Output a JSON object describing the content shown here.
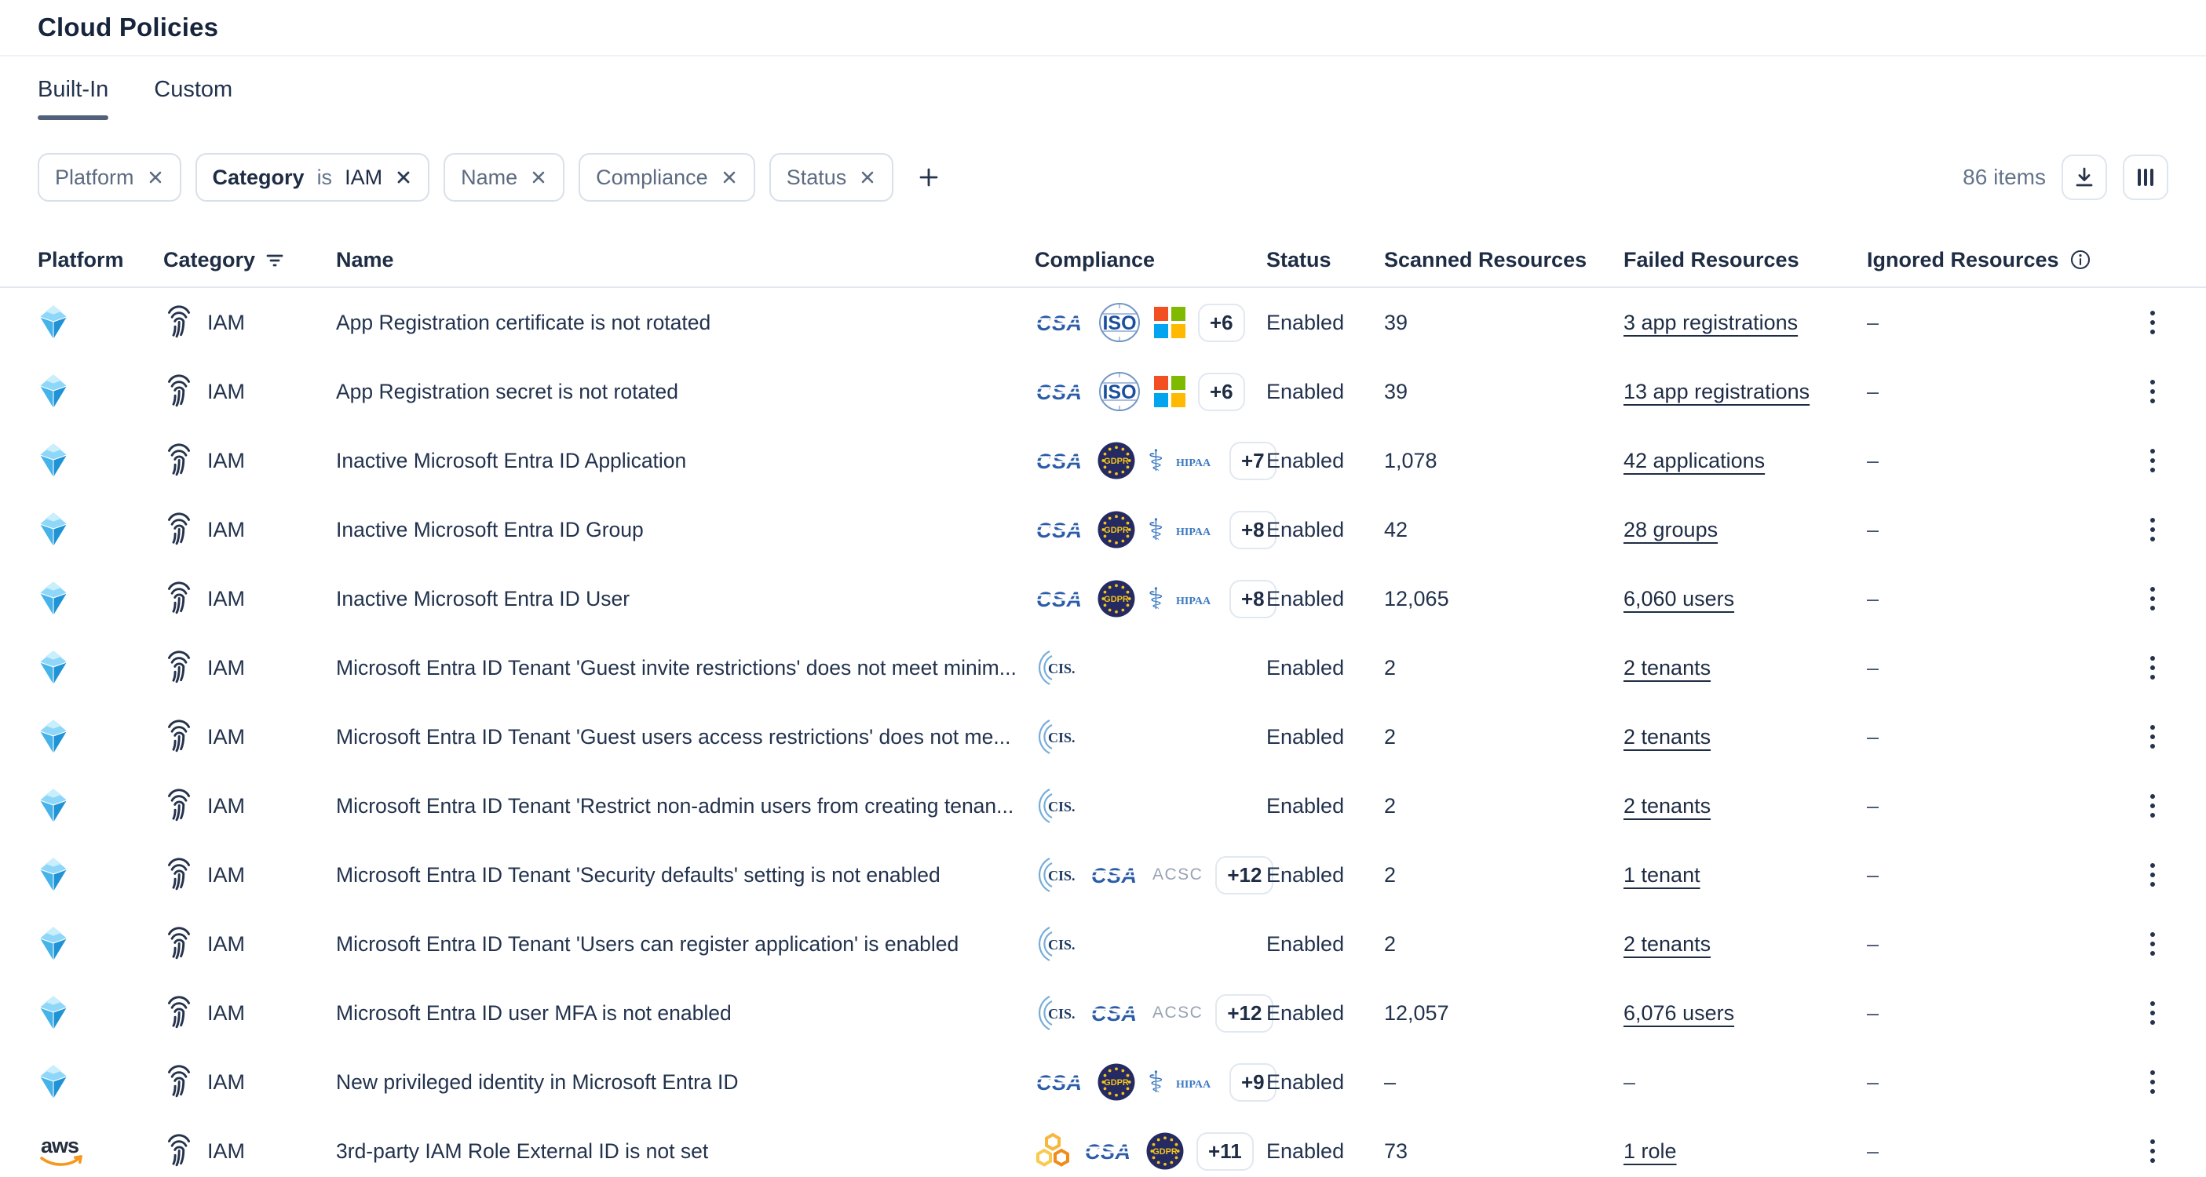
{
  "page": {
    "title": "Cloud Policies"
  },
  "tabs": [
    {
      "label": "Built-In",
      "active": true
    },
    {
      "label": "Custom",
      "active": false
    }
  ],
  "filter_bar": {
    "chips": [
      {
        "field": "Platform",
        "applied": false,
        "close_icon": "close-icon"
      },
      {
        "field": "Category",
        "operator": "is",
        "value": "IAM",
        "applied": true,
        "close_icon": "close-icon"
      },
      {
        "field": "Name",
        "applied": false,
        "close_icon": "close-icon"
      },
      {
        "field": "Compliance",
        "applied": false,
        "close_icon": "close-icon"
      },
      {
        "field": "Status",
        "applied": false,
        "close_icon": "close-icon"
      }
    ],
    "add_filter_icon": "plus-icon",
    "items_count": "86 items",
    "actions": [
      {
        "name": "download-button",
        "icon": "download-icon"
      },
      {
        "name": "columns-button",
        "icon": "columns-icon"
      }
    ]
  },
  "table": {
    "columns": [
      {
        "label": "Platform"
      },
      {
        "label": "Category",
        "icon": "filter-icon"
      },
      {
        "label": "Name"
      },
      {
        "label": "Compliance"
      },
      {
        "label": "Status"
      },
      {
        "label": "Scanned Resources"
      },
      {
        "label": "Failed Resources"
      },
      {
        "label": "Ignored Resources",
        "icon": "info-icon"
      },
      {
        "label": ""
      }
    ],
    "rows": [
      {
        "platform": "azure",
        "category": "IAM",
        "name": "App Registration certificate is not rotated",
        "badges": [
          "csa",
          "iso",
          "microsoft"
        ],
        "more": "+6",
        "status": "Enabled",
        "scanned": "39",
        "failed": "3 app registrations",
        "failed_link": true,
        "ignored": "–"
      },
      {
        "platform": "azure",
        "category": "IAM",
        "name": "App Registration secret is not rotated",
        "badges": [
          "csa",
          "iso",
          "microsoft"
        ],
        "more": "+6",
        "status": "Enabled",
        "scanned": "39",
        "failed": "13 app registrations",
        "failed_link": true,
        "ignored": "–"
      },
      {
        "platform": "azure",
        "category": "IAM",
        "name": "Inactive Microsoft Entra ID Application",
        "badges": [
          "csa",
          "gdpr",
          "hipaa"
        ],
        "more": "+7",
        "status": "Enabled",
        "scanned": "1,078",
        "failed": "42 applications",
        "failed_link": true,
        "ignored": "–"
      },
      {
        "platform": "azure",
        "category": "IAM",
        "name": "Inactive Microsoft Entra ID Group",
        "badges": [
          "csa",
          "gdpr",
          "hipaa"
        ],
        "more": "+8",
        "status": "Enabled",
        "scanned": "42",
        "failed": "28 groups",
        "failed_link": true,
        "ignored": "–"
      },
      {
        "platform": "azure",
        "category": "IAM",
        "name": "Inactive Microsoft Entra ID User",
        "badges": [
          "csa",
          "gdpr",
          "hipaa"
        ],
        "more": "+8",
        "status": "Enabled",
        "scanned": "12,065",
        "failed": "6,060 users",
        "failed_link": true,
        "ignored": "–"
      },
      {
        "platform": "azure",
        "category": "IAM",
        "name": "Microsoft Entra ID Tenant 'Guest invite restrictions' does not meet minim...",
        "badges": [
          "cis"
        ],
        "more": "",
        "status": "Enabled",
        "scanned": "2",
        "failed": "2 tenants",
        "failed_link": true,
        "ignored": "–"
      },
      {
        "platform": "azure",
        "category": "IAM",
        "name": "Microsoft Entra ID Tenant 'Guest users access restrictions' does not me...",
        "badges": [
          "cis"
        ],
        "more": "",
        "status": "Enabled",
        "scanned": "2",
        "failed": "2 tenants",
        "failed_link": true,
        "ignored": "–"
      },
      {
        "platform": "azure",
        "category": "IAM",
        "name": "Microsoft Entra ID Tenant 'Restrict non-admin users from creating tenan...",
        "badges": [
          "cis"
        ],
        "more": "",
        "status": "Enabled",
        "scanned": "2",
        "failed": "2 tenants",
        "failed_link": true,
        "ignored": "–"
      },
      {
        "platform": "azure",
        "category": "IAM",
        "name": "Microsoft Entra ID Tenant 'Security defaults' setting is not enabled",
        "badges": [
          "cis",
          "csa",
          "acsc"
        ],
        "more": "+12",
        "status": "Enabled",
        "scanned": "2",
        "failed": "1 tenant",
        "failed_link": true,
        "ignored": "–"
      },
      {
        "platform": "azure",
        "category": "IAM",
        "name": "Microsoft Entra ID Tenant 'Users can register application' is enabled",
        "badges": [
          "cis"
        ],
        "more": "",
        "status": "Enabled",
        "scanned": "2",
        "failed": "2 tenants",
        "failed_link": true,
        "ignored": "–"
      },
      {
        "platform": "azure",
        "category": "IAM",
        "name": "Microsoft Entra ID user MFA is not enabled",
        "badges": [
          "cis",
          "csa",
          "acsc"
        ],
        "more": "+12",
        "status": "Enabled",
        "scanned": "12,057",
        "failed": "6,076 users",
        "failed_link": true,
        "ignored": "–"
      },
      {
        "platform": "azure",
        "category": "IAM",
        "name": "New privileged identity in Microsoft Entra ID",
        "badges": [
          "csa",
          "gdpr",
          "hipaa"
        ],
        "more": "+9",
        "status": "Enabled",
        "scanned": "–",
        "failed": "–",
        "failed_link": false,
        "ignored": "–"
      },
      {
        "platform": "aws",
        "category": "IAM",
        "name": "3rd-party IAM Role External ID is not set",
        "badges": [
          "hexagons",
          "csa",
          "gdpr"
        ],
        "more": "+11",
        "status": "Enabled",
        "scanned": "73",
        "failed": "1 role",
        "failed_link": true,
        "ignored": "–"
      }
    ]
  },
  "colors": {
    "text_navy": "#1e2c44",
    "text_muted": "#64748b",
    "tab_underline": "#51617a",
    "chip_border": "#d9e0ea",
    "header_border": "#e3e8ef",
    "csa_blue": "#2b5ca8",
    "iso_blue": "#1d4e9e",
    "microsoft_squares": [
      "#f25022",
      "#7fba00",
      "#00a4ef",
      "#ffb900"
    ],
    "gdpr_navy": "#252a63",
    "gdpr_star_yellow": "#f5c518",
    "hipaa_blue": "#3b79c1",
    "cis_arc_blue": "#77add9",
    "acsc_gray": "#97a3b4",
    "hex_orange": "#f6a93c",
    "aws_smile_orange": "#f7981d",
    "azure_blues": [
      "#8ed7f8",
      "#45b3ea",
      "#1f93d6"
    ]
  }
}
